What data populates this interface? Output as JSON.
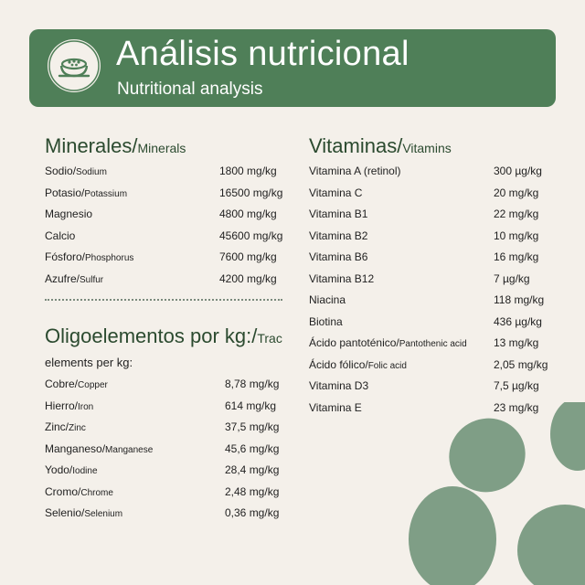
{
  "header": {
    "title": "Análisis nutricional",
    "subtitle": "Nutritional analysis",
    "icon": "food-bowl-icon"
  },
  "minerals": {
    "title": "Minerales/",
    "title_en": "Minerals",
    "items": [
      {
        "es": "Sodio/",
        "en": "Sodium",
        "value": "1800 mg/kg"
      },
      {
        "es": "Potasio/",
        "en": "Potassium",
        "value": "16500 mg/kg"
      },
      {
        "es": "Magnesio",
        "en": "",
        "value": "4800 mg/kg"
      },
      {
        "es": "Calcio",
        "en": "",
        "value": "45600 mg/kg"
      },
      {
        "es": "Fósforo/",
        "en": "Phosphorus",
        "value": "7600 mg/kg"
      },
      {
        "es": "Azufre/",
        "en": "Sulfur",
        "value": "4200 mg/kg"
      }
    ]
  },
  "trace": {
    "title": "Oligoelementos por kg:/",
    "title_en": "Trac",
    "title_en_line2": "elements per kg:",
    "items": [
      {
        "es": "Cobre/",
        "en": "Copper",
        "value": "8,78 mg/kg"
      },
      {
        "es": "Hierro/",
        "en": "Iron",
        "value": "614 mg/kg"
      },
      {
        "es": "Zinc/",
        "en": "Zinc",
        "value": "37,5 mg/kg"
      },
      {
        "es": "Manganeso/",
        "en": "Manganese",
        "value": "45,6 mg/kg"
      },
      {
        "es": "Yodo/",
        "en": "Iodine",
        "value": "28,4 mg/kg"
      },
      {
        "es": "Cromo/",
        "en": "Chrome",
        "value": "2,48 mg/kg"
      },
      {
        "es": "Selenio/",
        "en": "Selenium",
        "value": "0,36 mg/kg"
      }
    ]
  },
  "vitamins": {
    "title": "Vitaminas/",
    "title_en": "Vitamins",
    "items": [
      {
        "es": "Vitamina A (retinol)",
        "en": "",
        "value": "300 µg/kg"
      },
      {
        "es": "Vitamina C",
        "en": "",
        "value": "20 mg/kg"
      },
      {
        "es": "Vitamina B1",
        "en": "",
        "value": "22 mg/kg"
      },
      {
        "es": "Vitamina B2",
        "en": "",
        "value": "10 mg/kg"
      },
      {
        "es": "Vitamina B6",
        "en": "",
        "value": "16 mg/kg"
      },
      {
        "es": "Vitamina B12",
        "en": "",
        "value": "7 µg/kg"
      },
      {
        "es": "Niacina",
        "en": "",
        "value": "118 mg/kg"
      },
      {
        "es": "Biotina",
        "en": "",
        "value": "436 µg/kg"
      },
      {
        "es": "Ácido pantoténico/",
        "en": "Pantothenic acid",
        "value": "13 mg/kg"
      },
      {
        "es": "Ácido fólico/",
        "en": "Folic acid",
        "value": "2,05 mg/kg"
      },
      {
        "es": "Vitamina D3",
        "en": "",
        "value": "7,5 µg/kg"
      },
      {
        "es": "Vitamina E",
        "en": "",
        "value": "23 mg/kg"
      }
    ]
  },
  "colors": {
    "header": "#4f7f58",
    "paw": "#7f9e86",
    "background": "#f4f0ea",
    "heading": "#2b4a2f"
  },
  "decoration": {
    "icon": "paw-print-icon"
  }
}
